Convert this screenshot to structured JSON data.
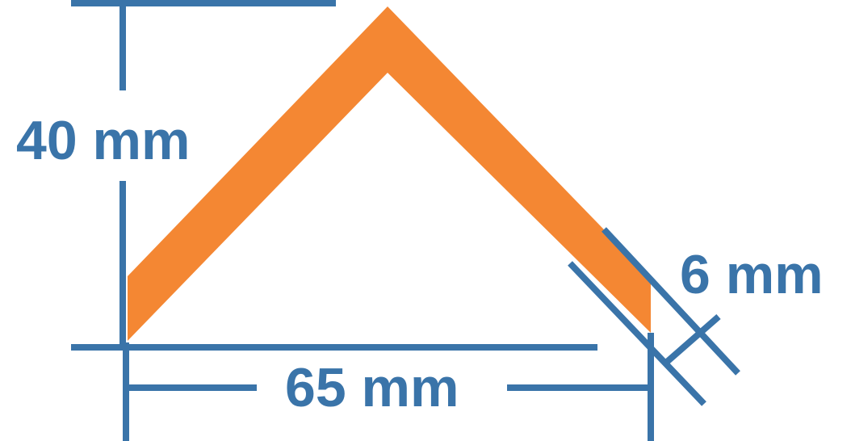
{
  "diagram": {
    "labels": {
      "height": "40 mm",
      "width": "65 mm",
      "thickness": "6 mm"
    },
    "colors": {
      "profile": "#f48733",
      "dimension": "#3a74a9",
      "background": "#ffffff"
    }
  }
}
